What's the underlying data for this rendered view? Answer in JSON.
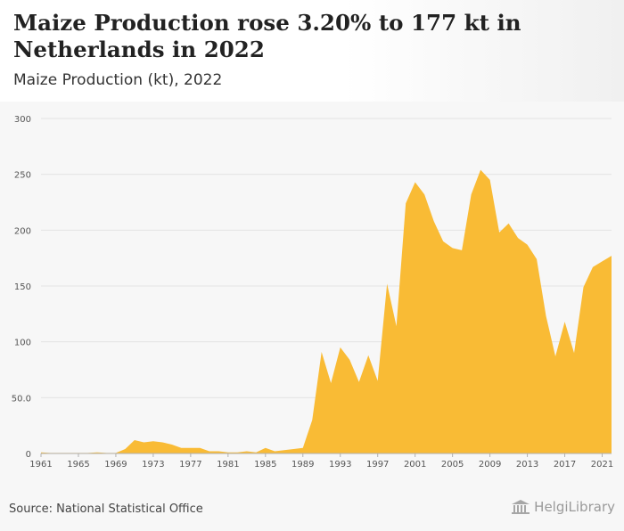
{
  "header": {
    "title": "Maize Production rose 3.20% to 177 kt in Netherlands in 2022",
    "subtitle": "Maize Production (kt), 2022"
  },
  "footer": {
    "source": "Source: National Statistical Office",
    "logo_text": "HelgiLibrary"
  },
  "colors": {
    "fill": "#f9bb35",
    "grid": "#e3e3e3",
    "axis": "#555555"
  },
  "chart_data": {
    "type": "area",
    "x": [
      1961,
      1962,
      1963,
      1964,
      1965,
      1966,
      1967,
      1968,
      1969,
      1970,
      1971,
      1972,
      1973,
      1974,
      1975,
      1976,
      1977,
      1978,
      1979,
      1980,
      1981,
      1982,
      1983,
      1984,
      1985,
      1986,
      1987,
      1988,
      1989,
      1990,
      1991,
      1992,
      1993,
      1994,
      1995,
      1996,
      1997,
      1998,
      1999,
      2000,
      2001,
      2002,
      2003,
      2004,
      2005,
      2006,
      2007,
      2008,
      2009,
      2010,
      2011,
      2012,
      2013,
      2014,
      2015,
      2016,
      2017,
      2018,
      2019,
      2020,
      2021,
      2022
    ],
    "values": [
      1,
      0.5,
      0.5,
      0.5,
      0.5,
      0.5,
      1,
      0.5,
      0.5,
      4,
      12,
      10,
      11,
      10,
      8,
      5,
      5,
      5,
      2,
      2,
      1,
      1,
      2,
      1,
      5,
      2,
      3,
      4,
      5,
      30,
      91,
      63,
      95,
      84,
      64,
      88,
      65,
      152,
      114,
      224,
      243,
      232,
      208,
      190,
      184,
      182,
      232,
      254,
      245,
      198,
      206,
      193,
      187,
      174,
      123,
      87,
      118,
      90,
      149,
      167,
      172,
      177
    ],
    "xticks": [
      "1961",
      "1965",
      "1969",
      "1973",
      "1977",
      "1981",
      "1985",
      "1989",
      "1993",
      "1997",
      "2001",
      "2005",
      "2009",
      "2013",
      "2017",
      "2021"
    ],
    "yticks": [
      "0",
      "50.0",
      "100",
      "150",
      "200",
      "250",
      "300"
    ],
    "ylim": [
      0,
      300
    ],
    "xlim": [
      1961,
      2022
    ],
    "grid": true,
    "legend": "none"
  }
}
